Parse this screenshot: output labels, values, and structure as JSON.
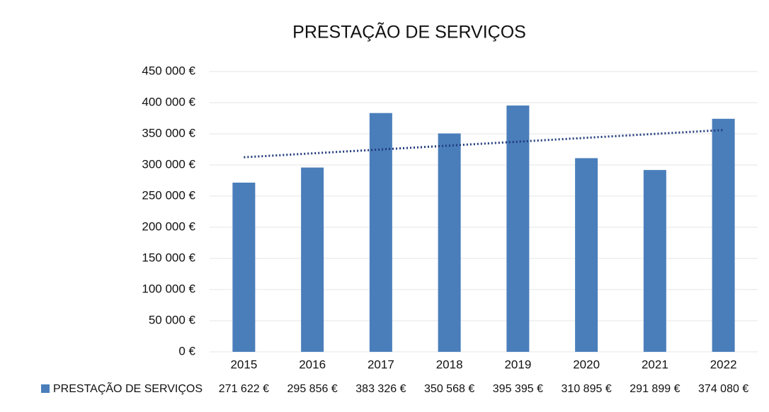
{
  "chart_data": {
    "type": "bar",
    "title": "PRESTAÇÃO DE SERVIÇOS",
    "categories": [
      "2015",
      "2016",
      "2017",
      "2018",
      "2019",
      "2020",
      "2021",
      "2022"
    ],
    "series": [
      {
        "name": "PRESTAÇÃO DE SERVIÇOS",
        "color": "#4a7ebb",
        "values": [
          271622,
          295856,
          383326,
          350568,
          395395,
          310895,
          291899,
          374080
        ],
        "value_labels": [
          "271 622 €",
          "295 856 €",
          "383 326 €",
          "350 568 €",
          "395 395 €",
          "310 895 €",
          "291 899 €",
          "374 080 €"
        ]
      }
    ],
    "ylim": [
      0,
      450000
    ],
    "yticks": [
      {
        "value": 0,
        "label": "0 €"
      },
      {
        "value": 50000,
        "label": "50 000 €"
      },
      {
        "value": 100000,
        "label": "100 000 €"
      },
      {
        "value": 150000,
        "label": "150 000 €"
      },
      {
        "value": 200000,
        "label": "200 000 €"
      },
      {
        "value": 250000,
        "label": "250 000 €"
      },
      {
        "value": 300000,
        "label": "300 000 €"
      },
      {
        "value": 350000,
        "label": "350 000 €"
      },
      {
        "value": 400000,
        "label": "400 000 €"
      },
      {
        "value": 450000,
        "label": "450 000 €"
      }
    ],
    "grid": true,
    "trendline": {
      "type": "linear",
      "color": "#1f3a7a"
    }
  }
}
